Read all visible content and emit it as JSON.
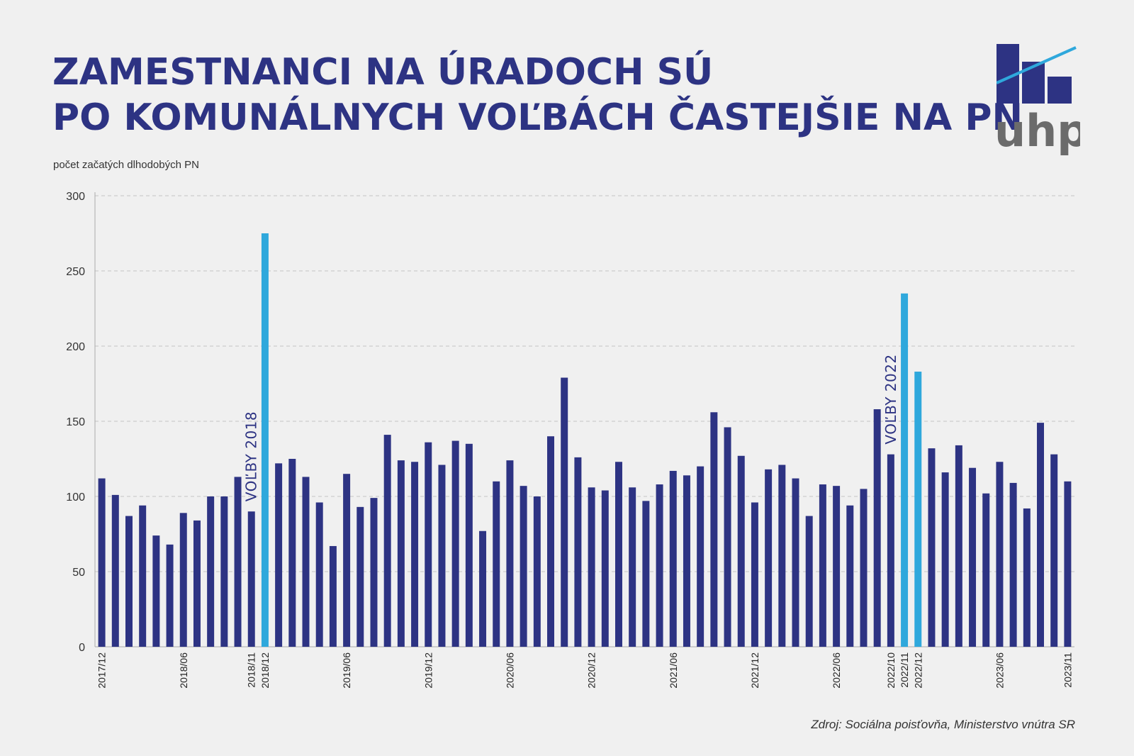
{
  "header": {
    "title_line1": "ZAMESTNANCI NA ÚRADOCH SÚ",
    "title_line2": "PO KOMUNÁLNYCH VOĽBÁCH ČASTEJŠIE NA PN"
  },
  "logo": {
    "text": "uhp",
    "bar_color": "#2d3383",
    "line_color": "#2fa8dc",
    "text_color": "#6b6b6b"
  },
  "footer": {
    "source": "Zdroj: Sociálna poisťovňa, Ministerstvo vnútra SR"
  },
  "colors": {
    "bar": "#2d3383",
    "highlight": "#2fa8dc",
    "grid": "#c4c4c4"
  },
  "chart_data": {
    "type": "bar",
    "title": "ZAMESTNANCI NA ÚRADOCH SÚ PO KOMUNÁLNYCH VOĽBÁCH ČASTEJŠIE NA PN",
    "ylabel": "počet začatých dlhodobých PN",
    "xlabel": "",
    "ylim": [
      0,
      300
    ],
    "yticks": [
      0,
      50,
      100,
      150,
      200,
      250,
      300
    ],
    "grid": true,
    "start_month": "2017/12",
    "values": [
      112,
      101,
      87,
      94,
      74,
      68,
      89,
      84,
      100,
      100,
      113,
      90,
      275,
      122,
      125,
      113,
      96,
      67,
      115,
      93,
      99,
      141,
      124,
      123,
      136,
      121,
      137,
      135,
      77,
      110,
      124,
      107,
      100,
      140,
      179,
      126,
      106,
      104,
      123,
      106,
      97,
      108,
      117,
      114,
      120,
      156,
      146,
      127,
      96,
      118,
      121,
      112,
      87,
      108,
      107,
      94,
      105,
      158,
      128,
      235,
      183,
      132,
      116,
      134,
      119,
      102,
      123,
      109,
      92,
      149,
      128,
      110
    ],
    "highlighted": [
      "2018/12",
      "2022/11",
      "2022/12"
    ],
    "xtick_labels": [
      "2017/12",
      "2018/06",
      "2018/11",
      "2018/12",
      "2019/06",
      "2019/12",
      "2020/06",
      "2020/12",
      "2021/06",
      "2021/12",
      "2022/06",
      "2022/10",
      "2022/11",
      "2022/12",
      "2023/06",
      "2023/11"
    ],
    "annotations": [
      {
        "text": "VOĽBY 2018",
        "month": "2018/11"
      },
      {
        "text": "VOĽBY 2022",
        "month": "2022/10"
      }
    ]
  }
}
